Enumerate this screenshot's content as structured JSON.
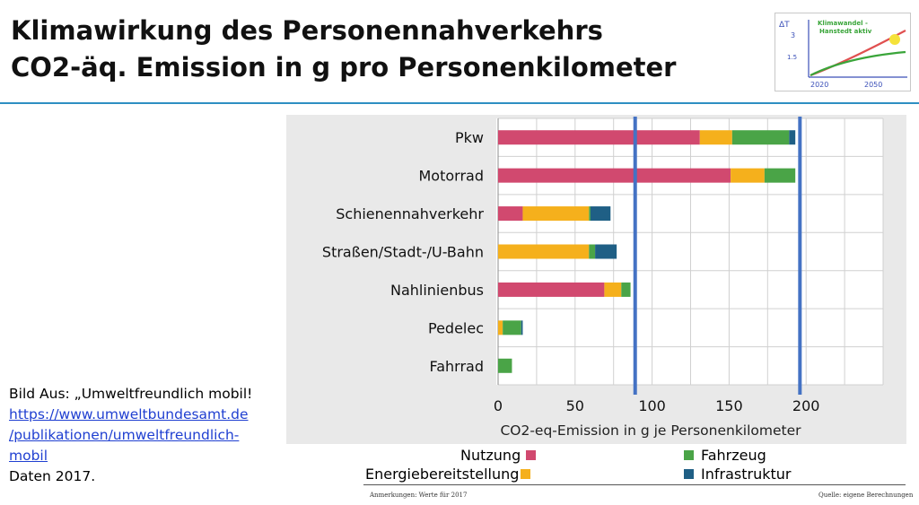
{
  "page": {
    "title_line1": "Klimawirkung des Personennahverkehrs",
    "title_line2": "CO2-äq. Emission in g pro Personenkilometer"
  },
  "logo": {
    "text_line1": "Klimawandel -",
    "text_line2": "Hanstedt aktiv",
    "y_label": "ΔT",
    "y_tick_top": "3",
    "y_tick_mid": "1.5",
    "x_tick_left": "2020",
    "x_tick_right": "2050"
  },
  "source": {
    "line1": "Bild Aus: „Umweltfreundlich mobil!",
    "link1": "https://www.umweltbundesamt.de",
    "link2": "/publikationen/umweltfreundlich-",
    "link3": "mobil",
    "line2": "Daten 2017."
  },
  "footer": {
    "left": "Anmerkungen: Werte für 2017",
    "right": "Quelle: eigene Berechnungen"
  },
  "chart_data": {
    "type": "bar",
    "orientation": "horizontal",
    "stacked": true,
    "categories": [
      "Pkw",
      "Motorrad",
      "Schienennahverkehr",
      "Straßen/Stadt-/U-Bahn",
      "Nahlinienbus",
      "Pedelec",
      "Fahrrad"
    ],
    "series": [
      {
        "name": "Nutzung",
        "color": "#d1496f",
        "values": [
          131,
          151,
          16,
          0,
          69,
          0,
          0
        ]
      },
      {
        "name": "Energiebereitstellung",
        "color": "#f5b01c",
        "values": [
          21,
          22,
          43,
          59,
          11,
          3,
          0
        ]
      },
      {
        "name": "Fahrzeug",
        "color": "#4aa447",
        "values": [
          37,
          20,
          1,
          4,
          6,
          12,
          9
        ]
      },
      {
        "name": "Infrastruktur",
        "color": "#1f5f85",
        "values": [
          4,
          0,
          13,
          14,
          0,
          1,
          0
        ]
      }
    ],
    "xlim": [
      0,
      250
    ],
    "xticks": [
      0,
      50,
      100,
      150,
      200
    ],
    "xlabel": "CO2-eq-Emission in g je Personenkilometer",
    "ylabel": "",
    "title": "",
    "grid": true,
    "reference_lines": [
      {
        "x": 89,
        "color": "#4472c4"
      },
      {
        "x": 196,
        "color": "#4472c4"
      }
    ],
    "legend_position": "bottom"
  }
}
